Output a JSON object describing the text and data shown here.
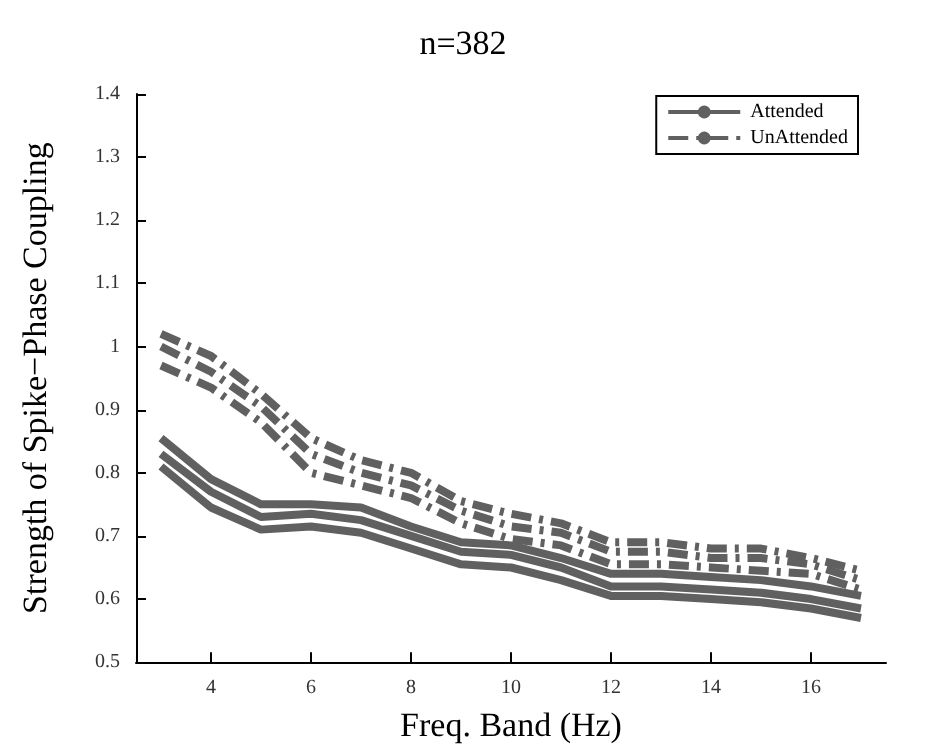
{
  "chart_data": {
    "type": "line",
    "title": "n=382",
    "xlabel": "Freq. Band (Hz)",
    "ylabel": "Strength of Spike−Phase Coupling",
    "x": [
      3,
      4,
      5,
      6,
      7,
      8,
      9,
      10,
      11,
      12,
      13,
      14,
      15,
      16,
      17
    ],
    "series": [
      {
        "name": "Attended",
        "color": "#606060",
        "line_style": "solid",
        "values": [
          0.83,
          0.77,
          0.73,
          0.735,
          0.725,
          0.7,
          0.675,
          0.67,
          0.65,
          0.62,
          0.62,
          0.615,
          0.61,
          0.6,
          0.585
        ]
      },
      {
        "color": "#606060",
        "line_style": "solid",
        "values": [
          0.855,
          0.79,
          0.75,
          0.75,
          0.745,
          0.715,
          0.69,
          0.685,
          0.665,
          0.64,
          0.64,
          0.635,
          0.63,
          0.62,
          0.605
        ]
      },
      {
        "color": "#606060",
        "line_style": "solid",
        "values": [
          0.81,
          0.745,
          0.71,
          0.715,
          0.705,
          0.68,
          0.655,
          0.65,
          0.63,
          0.605,
          0.605,
          0.6,
          0.595,
          0.585,
          0.57
        ]
      },
      {
        "name": "UnAttended",
        "color": "#606060",
        "line_style": "dashed",
        "values": [
          1.0,
          0.96,
          0.905,
          0.83,
          0.8,
          0.78,
          0.74,
          0.715,
          0.705,
          0.675,
          0.675,
          0.665,
          0.665,
          0.655,
          0.63
        ]
      },
      {
        "color": "#606060",
        "line_style": "dashed",
        "values": [
          1.02,
          0.985,
          0.925,
          0.855,
          0.82,
          0.8,
          0.755,
          0.735,
          0.72,
          0.69,
          0.69,
          0.68,
          0.68,
          0.665,
          0.645
        ]
      },
      {
        "color": "#606060",
        "line_style": "dashed",
        "values": [
          0.97,
          0.935,
          0.88,
          0.8,
          0.78,
          0.76,
          0.72,
          0.695,
          0.685,
          0.655,
          0.655,
          0.65,
          0.645,
          0.64,
          0.615
        ]
      }
    ],
    "xlim": [
      2.5,
      17.5
    ],
    "xticks": [
      4,
      6,
      8,
      10,
      12,
      14,
      16
    ],
    "ylim": [
      0.5,
      1.4
    ],
    "yticks": [
      0.5,
      0.6,
      0.7,
      0.8,
      0.9,
      1,
      1.1,
      1.2,
      1.3,
      1.4
    ],
    "grid": false,
    "legend": "top right",
    "marker": "none"
  }
}
